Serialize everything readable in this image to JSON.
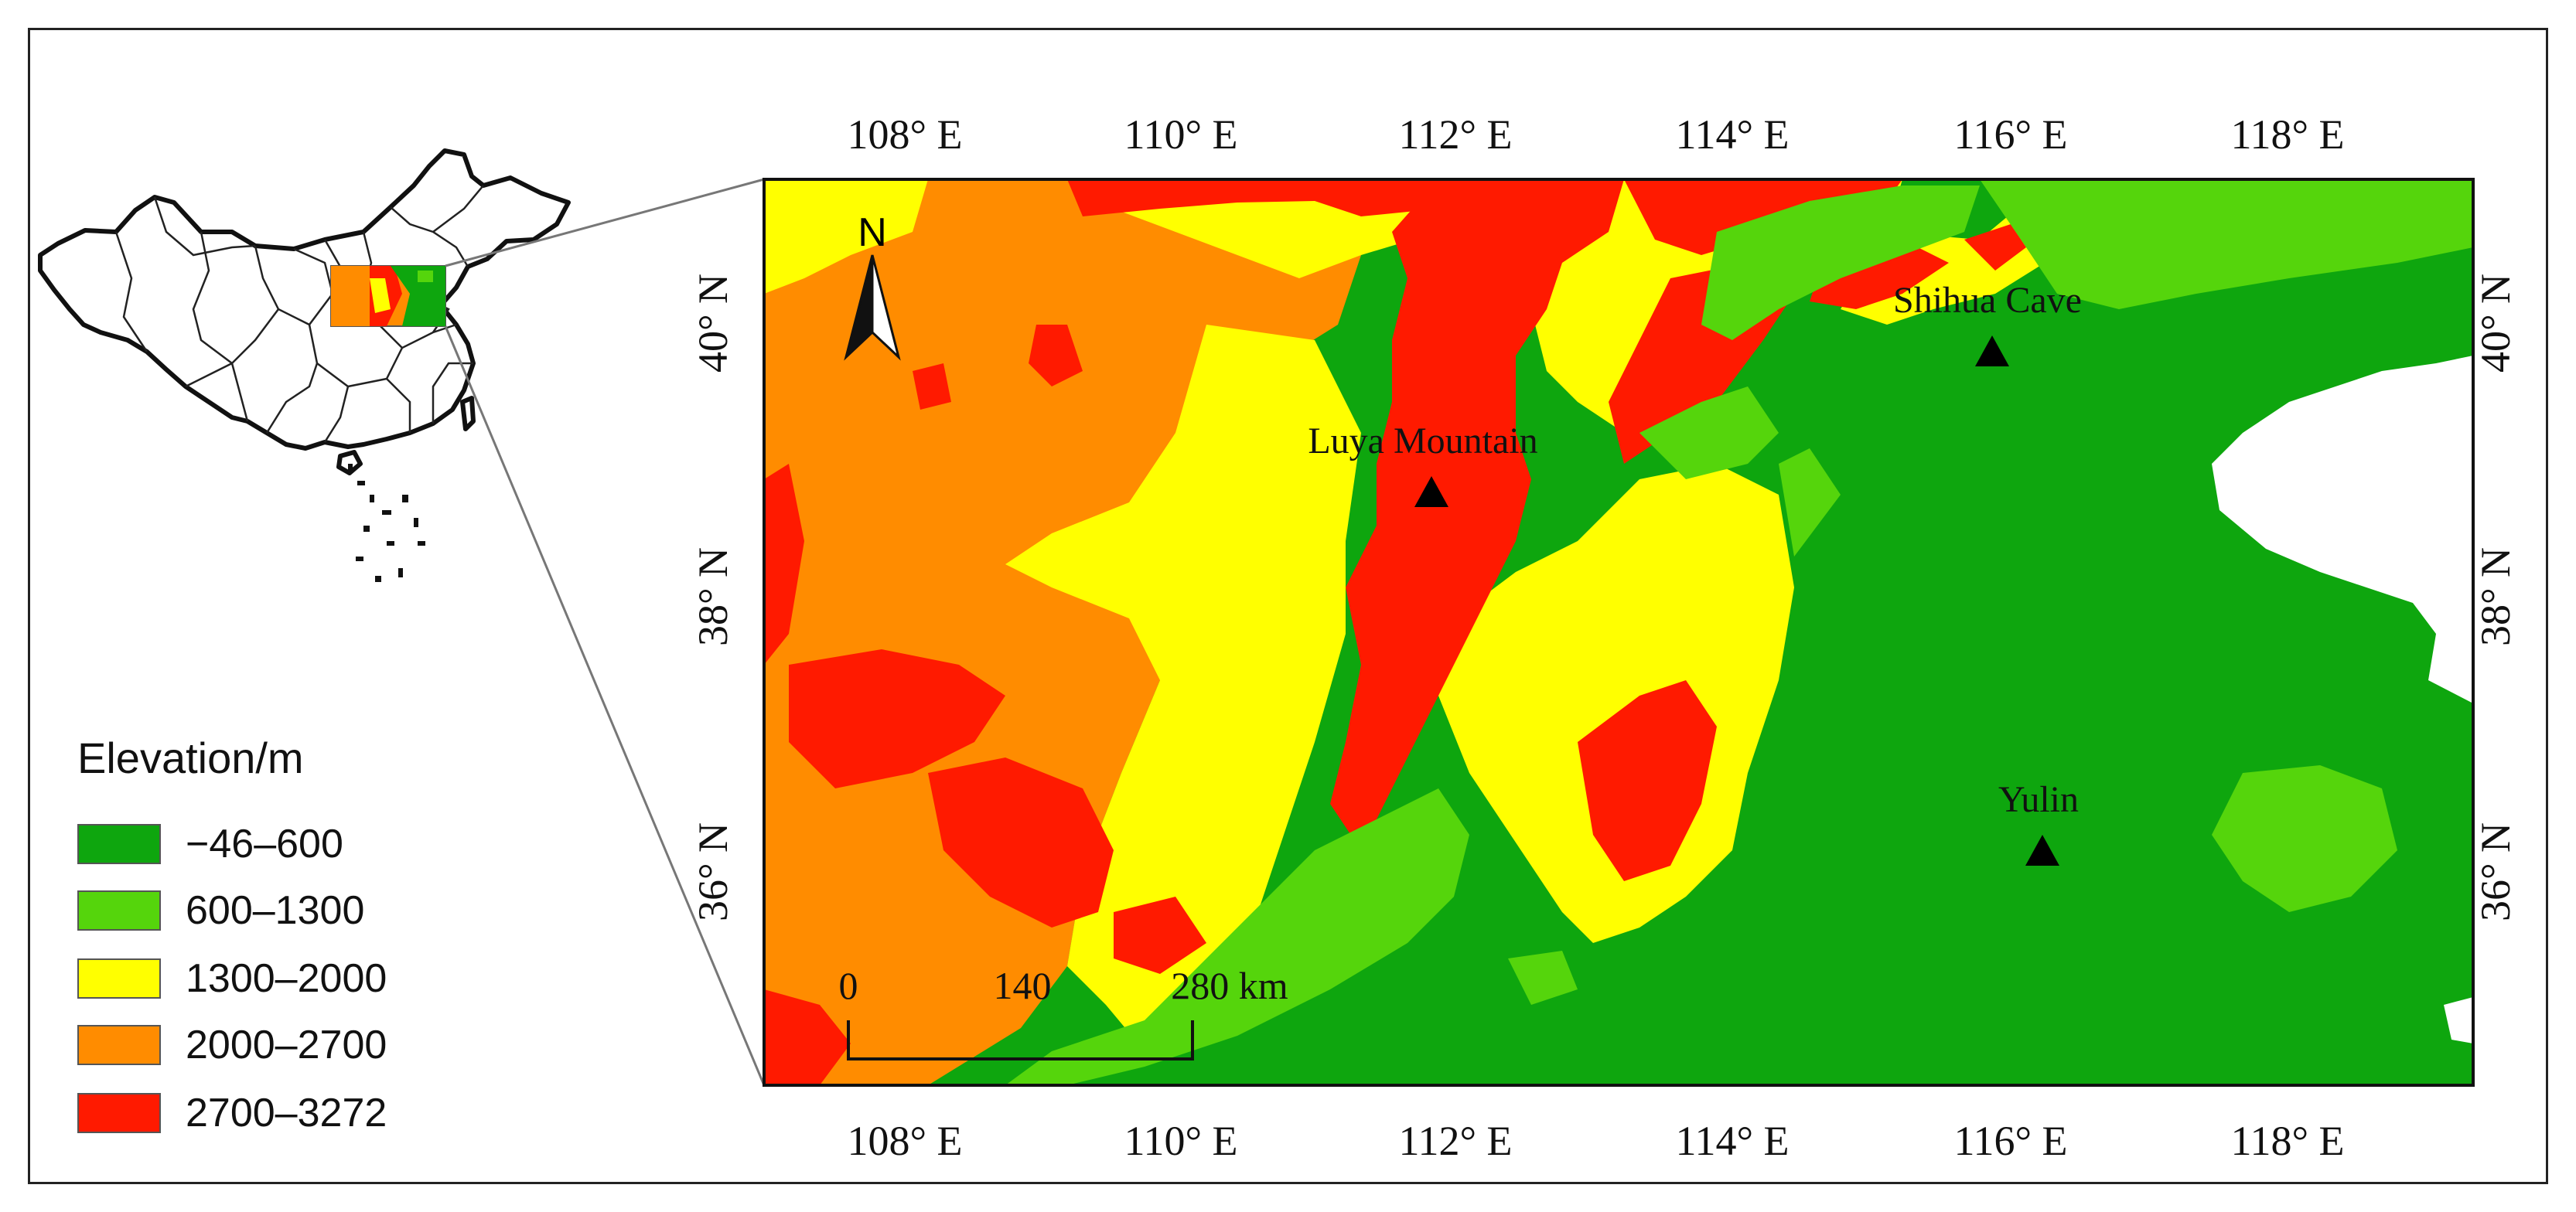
{
  "map": {
    "lon_ticks": [
      "108° E",
      "110° E",
      "112° E",
      "114° E",
      "116° E",
      "118° E"
    ],
    "lat_ticks": [
      "40° N",
      "38° N",
      "36° N"
    ],
    "north_label": "N",
    "scale_bar": {
      "labels": [
        "0",
        "140",
        "280 km"
      ]
    },
    "sites": [
      {
        "name": "Shihua Cave",
        "lon": 115.95,
        "lat": 39.8
      },
      {
        "name": "Luya Mountain",
        "lon": 111.85,
        "lat": 38.75
      },
      {
        "name": "Yulin",
        "lon": 116.3,
        "lat": 36.1
      }
    ],
    "extent": {
      "lon": [
        107,
        119.4
      ],
      "lat": [
        34.5,
        41.1
      ]
    }
  },
  "legend": {
    "title": "Elevation/m",
    "items": [
      {
        "label": "−46–600",
        "color": "#0ea60e"
      },
      {
        "label": "600–1300",
        "color": "#55d50c"
      },
      {
        "label": "1300–2000",
        "color": "#ffff00"
      },
      {
        "label": "2000–2700",
        "color": "#ff8c00"
      },
      {
        "label": "2700–3272",
        "color": "#ff1a00"
      }
    ]
  },
  "colors": {
    "lowland": "#0ea60e",
    "low_hills": "#55d50c",
    "mid": "#ffff00",
    "high": "#ff8c00",
    "peak": "#ff1a00",
    "sea": "#ffffff"
  }
}
